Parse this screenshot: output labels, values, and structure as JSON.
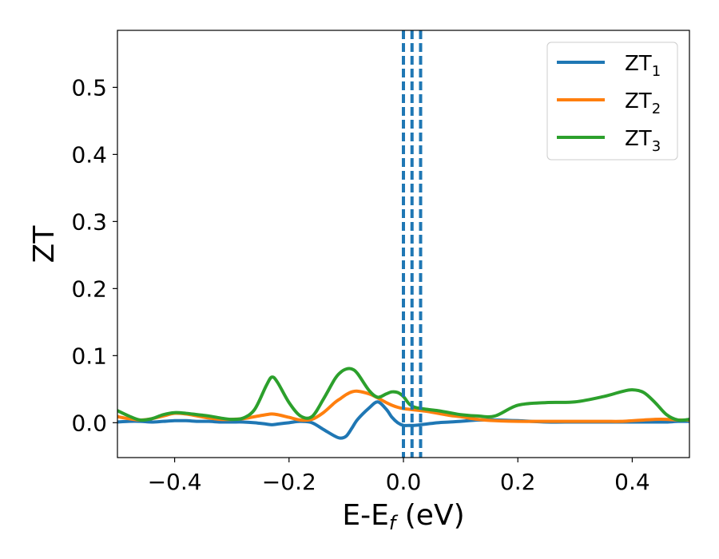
{
  "chart_data": {
    "type": "line",
    "title": "",
    "xlabel_main": "E-E",
    "xlabel_sub": "f",
    "xlabel_unit": " (eV)",
    "ylabel": "ZT",
    "xlim": [
      -0.5,
      0.5
    ],
    "ylim": [
      -0.052,
      0.585
    ],
    "xticks": [
      -0.4,
      -0.2,
      0.0,
      0.2,
      0.4
    ],
    "xtick_labels": [
      "−0.4",
      "−0.2",
      "0.0",
      "0.2",
      "0.4"
    ],
    "yticks": [
      0.0,
      0.1,
      0.2,
      0.3,
      0.4,
      0.5
    ],
    "ytick_labels": [
      "0.0",
      "0.1",
      "0.2",
      "0.3",
      "0.4",
      "0.5"
    ],
    "grid": false,
    "legend_placement": "top-right",
    "x": [
      -0.5,
      -0.48,
      -0.46,
      -0.44,
      -0.42,
      -0.4,
      -0.38,
      -0.36,
      -0.34,
      -0.32,
      -0.3,
      -0.28,
      -0.26,
      -0.24,
      -0.23,
      -0.22,
      -0.2,
      -0.18,
      -0.16,
      -0.14,
      -0.12,
      -0.11,
      -0.1,
      -0.09,
      -0.08,
      -0.06,
      -0.045,
      -0.03,
      -0.02,
      -0.01,
      0.0,
      0.01,
      0.02,
      0.04,
      0.06,
      0.08,
      0.1,
      0.13,
      0.16,
      0.2,
      0.25,
      0.3,
      0.35,
      0.38,
      0.4,
      0.42,
      0.44,
      0.46,
      0.48,
      0.5
    ],
    "series": [
      {
        "name": "ZT",
        "name_sub": "1",
        "color": "#1f77b4",
        "values": [
          0.001,
          0.002,
          0.002,
          0.001,
          0.002,
          0.003,
          0.003,
          0.002,
          0.002,
          0.001,
          0.001,
          0.001,
          0.0,
          -0.002,
          -0.003,
          -0.002,
          0.0,
          0.002,
          0.0,
          -0.01,
          -0.02,
          -0.023,
          -0.02,
          -0.008,
          0.005,
          0.022,
          0.031,
          0.02,
          0.008,
          0.0,
          -0.004,
          -0.004,
          -0.004,
          -0.002,
          0.0,
          0.001,
          0.002,
          0.004,
          0.004,
          0.003,
          0.001,
          0.001,
          0.001,
          0.001,
          0.001,
          0.001,
          0.001,
          0.001,
          0.002,
          0.002
        ]
      },
      {
        "name": "ZT",
        "name_sub": "2",
        "color": "#ff7f0e",
        "values": [
          0.009,
          0.006,
          0.004,
          0.006,
          0.01,
          0.014,
          0.013,
          0.01,
          0.007,
          0.005,
          0.005,
          0.006,
          0.009,
          0.012,
          0.013,
          0.012,
          0.008,
          0.004,
          0.005,
          0.015,
          0.03,
          0.036,
          0.042,
          0.046,
          0.047,
          0.043,
          0.037,
          0.03,
          0.026,
          0.023,
          0.021,
          0.02,
          0.019,
          0.017,
          0.014,
          0.011,
          0.009,
          0.005,
          0.003,
          0.002,
          0.002,
          0.002,
          0.002,
          0.002,
          0.003,
          0.004,
          0.005,
          0.005,
          0.004,
          0.004
        ]
      },
      {
        "name": "ZT",
        "name_sub": "3",
        "color": "#2ca02c",
        "values": [
          0.018,
          0.01,
          0.004,
          0.006,
          0.012,
          0.015,
          0.014,
          0.012,
          0.01,
          0.007,
          0.005,
          0.007,
          0.02,
          0.055,
          0.068,
          0.06,
          0.03,
          0.01,
          0.009,
          0.035,
          0.065,
          0.075,
          0.08,
          0.08,
          0.073,
          0.048,
          0.038,
          0.043,
          0.046,
          0.045,
          0.039,
          0.028,
          0.023,
          0.02,
          0.018,
          0.015,
          0.012,
          0.01,
          0.01,
          0.026,
          0.03,
          0.031,
          0.039,
          0.046,
          0.049,
          0.045,
          0.03,
          0.012,
          0.004,
          0.005
        ]
      }
    ],
    "vlines": [
      {
        "x": 0.0,
        "color": "#000000",
        "style": "dashed"
      },
      {
        "x": 0.0,
        "color": "#1f77b4",
        "style": "dashed"
      },
      {
        "x": 0.015,
        "color": "#1f77b4",
        "style": "dashed"
      },
      {
        "x": 0.03,
        "color": "#1f77b4",
        "style": "dashed"
      }
    ]
  }
}
